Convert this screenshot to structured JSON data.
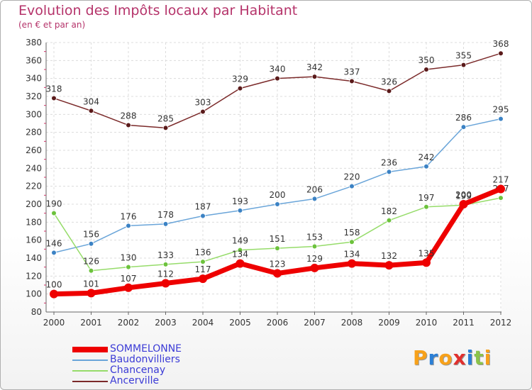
{
  "title": "Evolution des Impôts locaux par Habitant",
  "subtitle": "(en € et par an)",
  "logo_text": "Proxiti",
  "logo_letters": [
    {
      "ch": "P",
      "color": "#f7a11a"
    },
    {
      "ch": "r",
      "color": "#2b7fd6"
    },
    {
      "ch": "o",
      "color": "#f7a11a"
    },
    {
      "ch": "x",
      "color": "#e0302e"
    },
    {
      "ch": "i",
      "color": "#2b7fd6"
    },
    {
      "ch": "t",
      "color": "#8bc34a"
    },
    {
      "ch": "i",
      "color": "#f7a11a"
    }
  ],
  "chart_data": {
    "type": "line",
    "title": "Evolution des Impôts locaux par Habitant",
    "subtitle": "(en € et par an)",
    "xlabel": "",
    "ylabel": "",
    "x": [
      "2000",
      "2001",
      "2002",
      "2003",
      "2004",
      "2005",
      "2006",
      "2007",
      "2008",
      "2009",
      "2010",
      "2011",
      "2012"
    ],
    "ylim": [
      80,
      380
    ],
    "yticks": [
      80,
      100,
      120,
      140,
      160,
      180,
      200,
      220,
      240,
      260,
      280,
      300,
      320,
      340,
      360,
      380
    ],
    "grid": true,
    "legend_position": "bottom-left",
    "series": [
      {
        "name": "Ancerville",
        "color": "#7b2a2a",
        "dot": "#5a1a1a",
        "width": "thin",
        "values": [
          318,
          304,
          288,
          285,
          303,
          329,
          340,
          342,
          337,
          326,
          350,
          355,
          368
        ]
      },
      {
        "name": "Baudonvilliers",
        "color": "#6aa5d9",
        "dot": "#3b82c4",
        "width": "thin",
        "values": [
          146,
          156,
          176,
          178,
          187,
          193,
          200,
          206,
          220,
          236,
          242,
          286,
          295
        ]
      },
      {
        "name": "Chancenay",
        "color": "#96dc6a",
        "dot": "#6cc23c",
        "width": "thin",
        "values": [
          190,
          126,
          130,
          133,
          136,
          149,
          151,
          153,
          158,
          182,
          197,
          199,
          207
        ]
      },
      {
        "name": "SOMMELONNE",
        "color": "#ee0000",
        "dot": "#ee0000",
        "width": "thick",
        "values": [
          100,
          101,
          107,
          112,
          117,
          134,
          123,
          129,
          134,
          132,
          135,
          200,
          217
        ]
      }
    ],
    "legend": [
      "SOMMELONNE",
      "Baudonvilliers",
      "Chancenay",
      "Ancerville"
    ]
  }
}
